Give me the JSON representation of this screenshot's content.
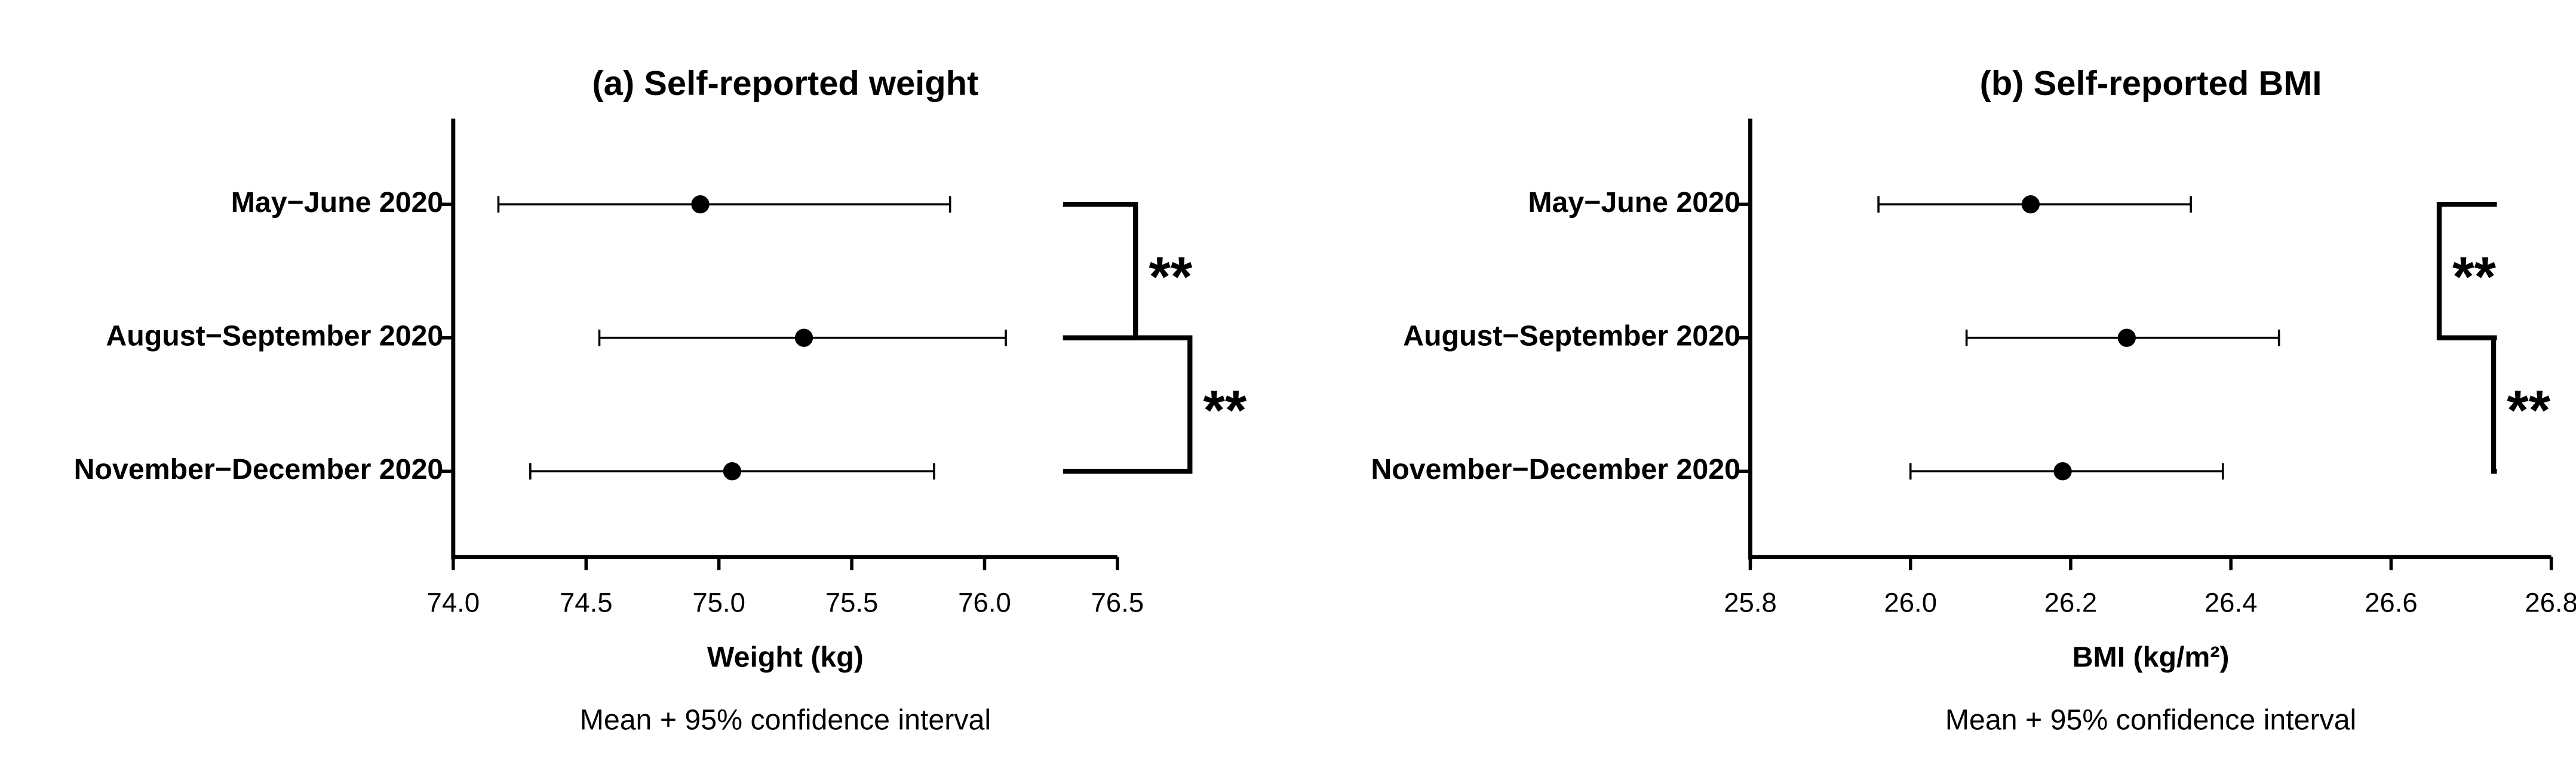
{
  "chart_data": [
    {
      "type": "errorbar",
      "title": "(a) Self-reported weight",
      "x_label": "Weight (kg)",
      "note": "Mean + 95% confidence interval",
      "categories": [
        "May−June 2020",
        "August−September 2020",
        "November−December 2020"
      ],
      "values": [
        74.93,
        75.32,
        75.05
      ],
      "ci_low": [
        74.17,
        74.55,
        74.29
      ],
      "ci_high": [
        75.87,
        76.08,
        75.81
      ],
      "color": "#000000",
      "xlim": [
        74,
        76.5
      ],
      "xticks": [
        {
          "value": 74,
          "label": "74.0"
        },
        74.5,
        {
          "value": 75,
          "label": "75.0"
        },
        75.5,
        {
          "value": 76,
          "label": "76.0"
        },
        76.5
      ],
      "annotations": [
        "**",
        "**"
      ]
    },
    {
      "type": "errorbar",
      "title": "(b) Self-reported BMI",
      "x_label": "BMI (kg/m²)",
      "note": "Mean + 95% confidence interval",
      "categories": [
        "May−June 2020",
        "August−September 2020",
        "November−December 2020"
      ],
      "values": [
        26.15,
        26.27,
        26.19
      ],
      "ci_low": [
        25.96,
        26.07,
        26.0
      ],
      "ci_high": [
        26.35,
        26.46,
        26.39
      ],
      "color": "#000000",
      "xlim": [
        25.8,
        26.8
      ],
      "xticks": [
        25.8,
        {
          "value": 26,
          "label": "26.0"
        },
        26.2,
        26.4,
        26.6,
        26.8
      ],
      "annotations": [
        "**",
        "**"
      ]
    }
  ]
}
